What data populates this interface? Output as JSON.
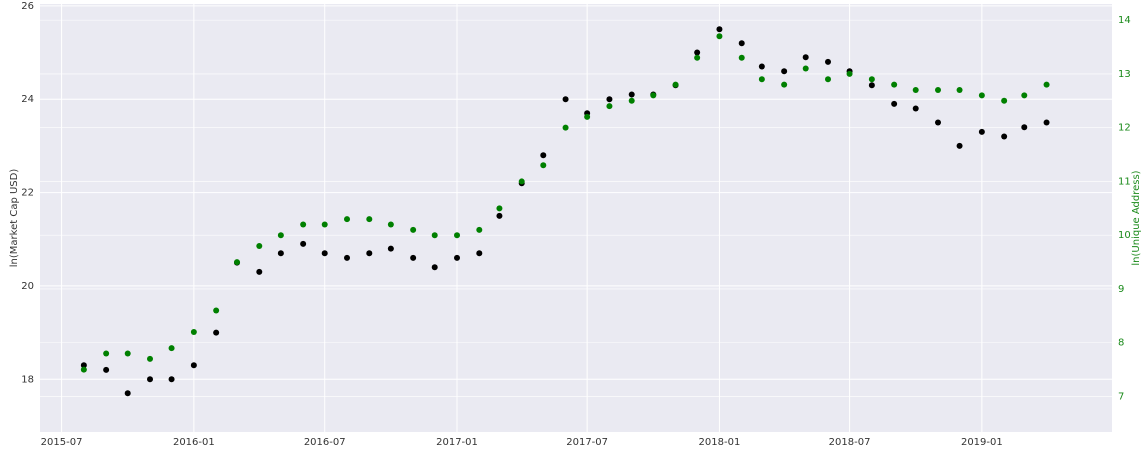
{
  "chart_data": {
    "type": "scatter",
    "x": [
      "2015-08",
      "2015-09",
      "2015-10",
      "2015-11",
      "2015-12",
      "2016-01",
      "2016-02",
      "2016-03",
      "2016-04",
      "2016-05",
      "2016-06",
      "2016-07",
      "2016-08",
      "2016-09",
      "2016-10",
      "2016-11",
      "2016-12",
      "2017-01",
      "2017-02",
      "2017-03",
      "2017-04",
      "2017-05",
      "2017-06",
      "2017-07",
      "2017-08",
      "2017-09",
      "2017-10",
      "2017-11",
      "2017-12",
      "2018-01",
      "2018-02",
      "2018-03",
      "2018-04",
      "2018-05",
      "2018-06",
      "2018-07",
      "2018-08",
      "2018-09",
      "2018-10",
      "2018-11",
      "2018-12",
      "2019-01",
      "2019-02",
      "2019-03",
      "2019-04"
    ],
    "xlim": [
      "2015-06",
      "2019-07"
    ],
    "xticks": [
      "2015-07",
      "2016-01",
      "2016-07",
      "2017-01",
      "2017-07",
      "2018-01",
      "2018-07",
      "2019-01"
    ],
    "y_label": "ln(Market Cap USD)",
    "y2_label": "ln(Unique Address)",
    "ylim": [
      16.87,
      26.04
    ],
    "yticks": [
      18,
      20,
      22,
      24,
      26
    ],
    "y2lim": [
      6.34,
      14.3
    ],
    "y2ticks": [
      7,
      8,
      9,
      10,
      11,
      12,
      13,
      14
    ],
    "grid": true,
    "series": [
      {
        "color": "#000000",
        "values": [
          18.3,
          18.2,
          17.7,
          18.0,
          18.0,
          18.3,
          19.0,
          20.5,
          20.3,
          20.7,
          20.9,
          20.7,
          20.6,
          20.7,
          20.8,
          20.6,
          20.4,
          20.6,
          20.7,
          21.5,
          22.2,
          22.8,
          24.0,
          23.7,
          24.0,
          24.1,
          24.1,
          24.3,
          25.0,
          25.5,
          25.2,
          24.7,
          24.6,
          24.9,
          24.8,
          24.6,
          24.3,
          23.9,
          23.8,
          23.5,
          23.0,
          23.3,
          23.2,
          23.4,
          23.5
        ]
      },
      {
        "color": "#008000",
        "axis": "y2",
        "values": [
          7.5,
          7.8,
          7.8,
          7.7,
          7.9,
          8.2,
          8.6,
          9.5,
          9.8,
          10.0,
          10.2,
          10.2,
          10.3,
          10.3,
          10.2,
          10.1,
          10.0,
          10.0,
          10.1,
          10.5,
          11.0,
          11.3,
          12.0,
          12.2,
          12.4,
          12.5,
          12.6,
          12.8,
          13.3,
          13.7,
          13.3,
          12.9,
          12.8,
          13.1,
          12.9,
          13.0,
          12.9,
          12.8,
          12.7,
          12.7,
          12.7,
          12.6,
          12.5,
          12.6,
          12.8
        ]
      }
    ]
  }
}
